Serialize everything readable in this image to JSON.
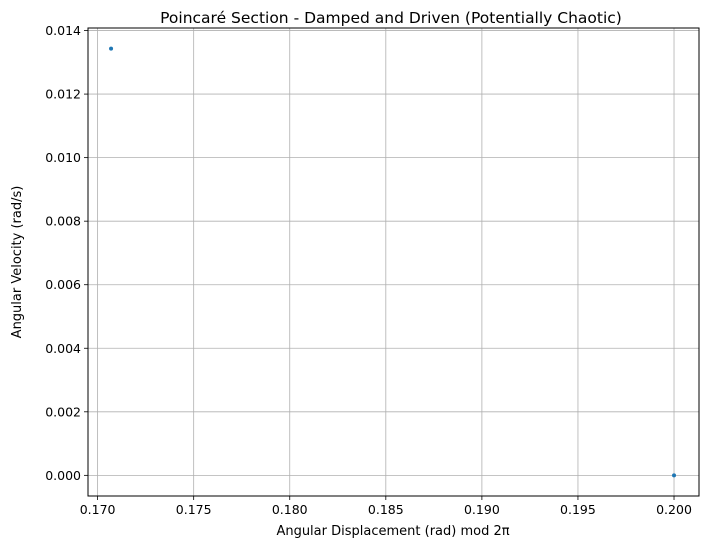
{
  "chart_data": {
    "type": "scatter",
    "title": "Poincaré Section - Damped and Driven (Potentially Chaotic)",
    "xlabel": "Angular Displacement (rad) mod 2π",
    "ylabel": "Angular Velocity (rad/s)",
    "xlim": [
      0.1695,
      0.2013
    ],
    "ylim": [
      -0.00065,
      0.01408
    ],
    "xticks": [
      0.17,
      0.175,
      0.18,
      0.185,
      0.19,
      0.195,
      0.2
    ],
    "xtick_labels": [
      "0.170",
      "0.175",
      "0.180",
      "0.185",
      "0.190",
      "0.195",
      "0.200"
    ],
    "yticks": [
      0.0,
      0.002,
      0.004,
      0.006,
      0.008,
      0.01,
      0.012,
      0.014
    ],
    "ytick_labels": [
      "0.000",
      "0.002",
      "0.004",
      "0.006",
      "0.008",
      "0.010",
      "0.012",
      "0.014"
    ],
    "grid": true,
    "series": [
      {
        "color": "#1f77b4",
        "points": [
          {
            "x": 0.1707,
            "y": 0.01343
          },
          {
            "x": 0.2,
            "y": 0.0
          }
        ]
      }
    ]
  }
}
